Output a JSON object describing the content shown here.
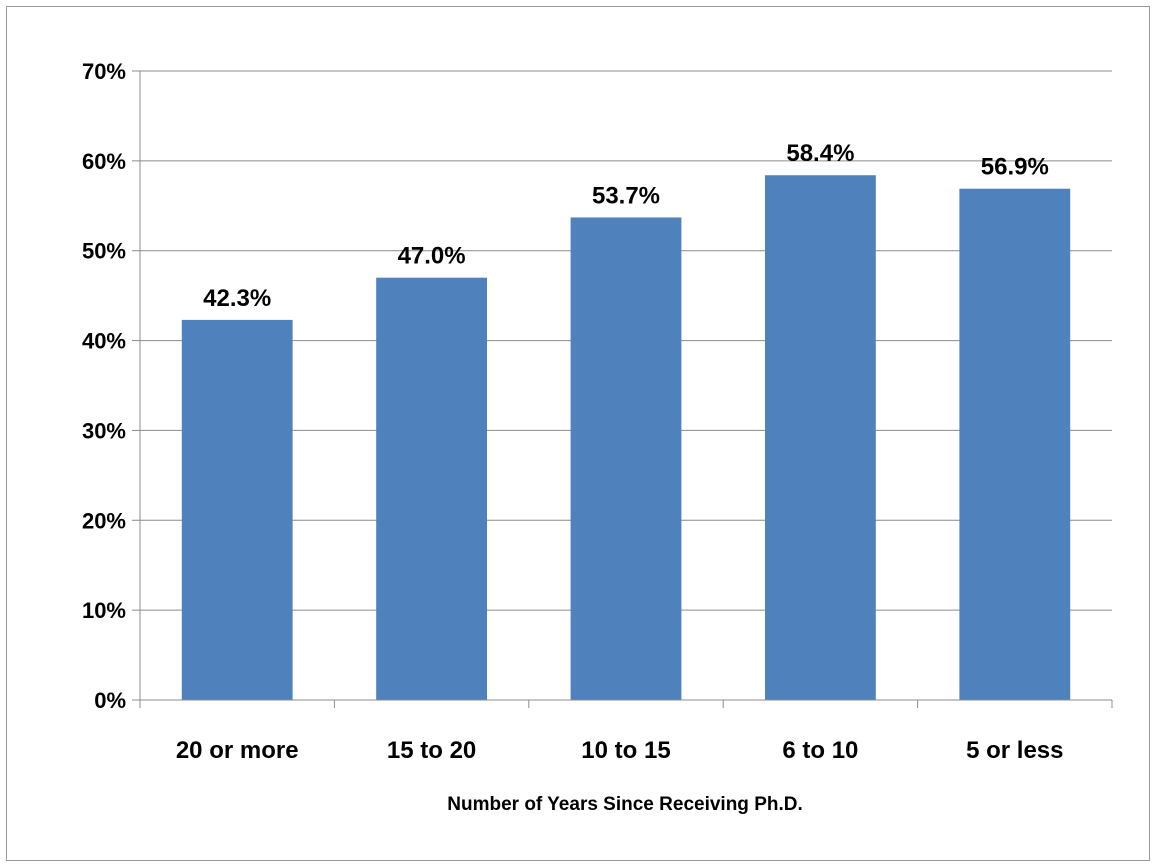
{
  "chart_data": {
    "type": "bar",
    "title": "",
    "xlabel": "Number of Years Since Receiving Ph.D.",
    "ylabel": "",
    "categories": [
      "20 or more",
      "15 to 20",
      "10 to 15",
      "6 to 10",
      "5 or less"
    ],
    "values": [
      42.3,
      47.0,
      53.7,
      58.4,
      56.9
    ],
    "data_labels": [
      "42.3%",
      "47.0%",
      "53.7%",
      "58.4%",
      "56.9%"
    ],
    "ylim": [
      0,
      70
    ],
    "yticks": [
      0,
      10,
      20,
      30,
      40,
      50,
      60,
      70
    ],
    "ytick_labels": [
      "0%",
      "10%",
      "20%",
      "30%",
      "40%",
      "50%",
      "60%",
      "70%"
    ],
    "grid": true,
    "legend": "none",
    "bar_color": "#4f81bd",
    "grid_color": "#8c8c8c"
  }
}
